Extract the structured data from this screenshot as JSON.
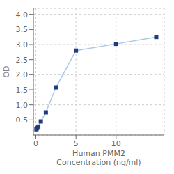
{
  "chart_data": {
    "type": "line",
    "x": [
      0.078,
      0.156,
      0.313,
      0.625,
      1.25,
      2.5,
      5,
      10,
      15
    ],
    "values": [
      0.19,
      0.23,
      0.28,
      0.45,
      0.75,
      1.58,
      2.8,
      3.02,
      3.25
    ],
    "color": "#a8c8e8",
    "colors": [
      "#1f3d7a",
      "#1f3d7a",
      "#1f3d7a",
      "#1f3d7a",
      "#1f3d7a",
      "#1f3d7a",
      "#1f3d7a",
      "#1f3d7a",
      "#1f3d7a"
    ],
    "marker": "square",
    "xlabel": "Human PMM2\nConcentration (ng/ml)",
    "ylabel": "OD",
    "xlim": [
      -0.3,
      16
    ],
    "ylim": [
      0,
      4.2
    ],
    "xticks": [
      0,
      5,
      10
    ],
    "yticks": [
      0.5,
      1.0,
      1.5,
      2.0,
      2.5,
      3.0,
      3.5,
      4.0
    ],
    "grid": true
  }
}
